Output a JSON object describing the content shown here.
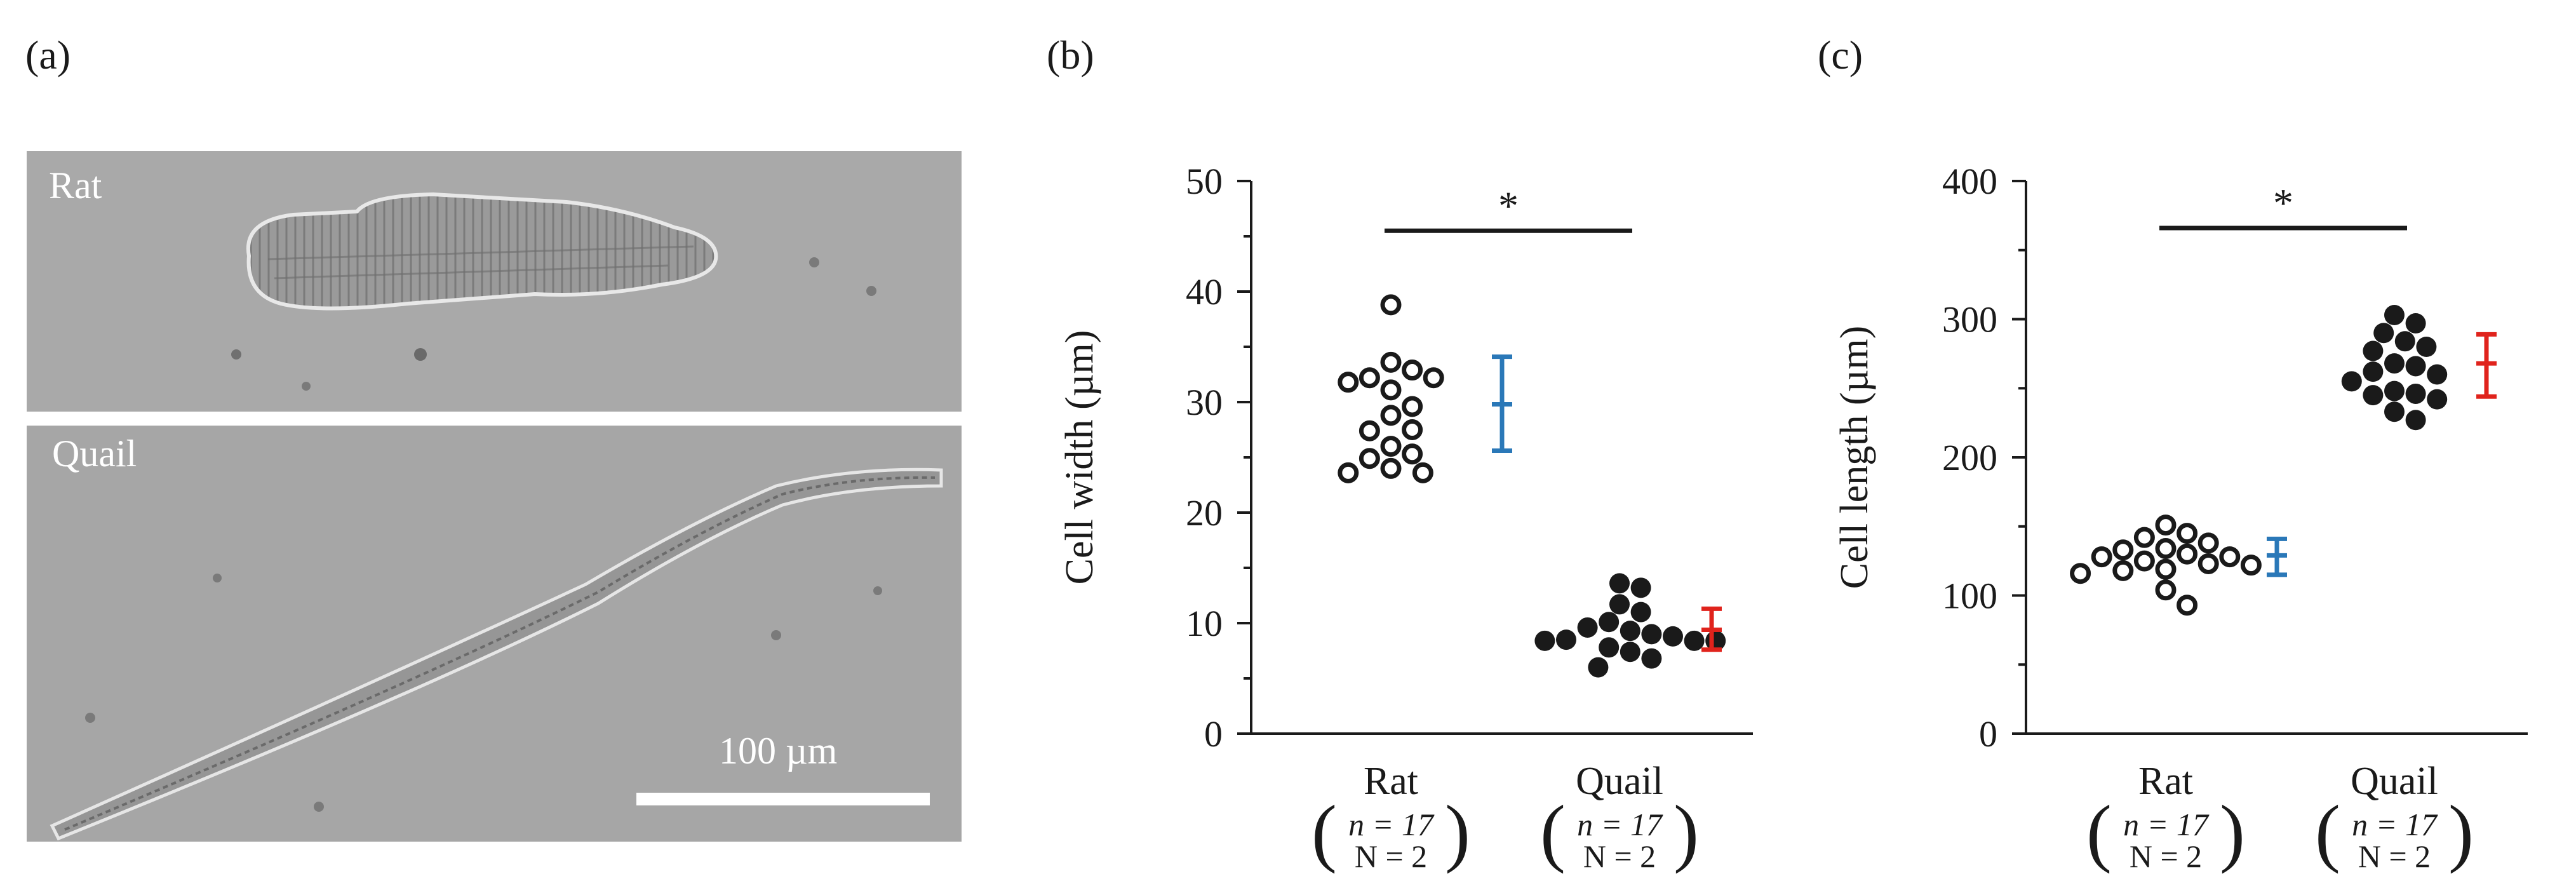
{
  "panels": {
    "a": {
      "label": "(a)",
      "top_image_label": "Rat",
      "bottom_image_label": "Quail",
      "scale_bar_label": "100 µm"
    },
    "b": {
      "label": "(b)"
    },
    "c": {
      "label": "(c)"
    }
  },
  "chart_data": [
    {
      "type": "scatter",
      "panel": "(b)",
      "title": "",
      "ylabel": "Cell width (µm)",
      "xlabel": "",
      "ylim": [
        0,
        50
      ],
      "yticks": [
        0,
        10,
        20,
        30,
        40,
        50
      ],
      "categories": [
        {
          "name": "Rat",
          "n_label": "n = 17",
          "N_label": "N = 2"
        },
        {
          "name": "Quail",
          "n_label": "n = 17",
          "N_label": "N = 2"
        }
      ],
      "series": [
        {
          "name": "Rat",
          "marker": "open-circle",
          "values": [
            38.8,
            33.6,
            32.9,
            32.2,
            32.2,
            31.8,
            31.1,
            29.6,
            28.8,
            27.5,
            27.4,
            26.0,
            25.3,
            24.9,
            24.0,
            23.6,
            23.6
          ]
        },
        {
          "name": "Quail",
          "marker": "filled-circle",
          "values": [
            13.6,
            13.2,
            11.7,
            11.0,
            10.1,
            9.6,
            9.3,
            9.0,
            8.8,
            8.5,
            8.4,
            8.4,
            8.4,
            7.8,
            7.4,
            6.8,
            6.0
          ]
        }
      ],
      "error_bars": [
        {
          "category": "Rat",
          "mean": 29.8,
          "low": 25.6,
          "high": 34.1,
          "color": "#2a78b8"
        },
        {
          "category": "Quail",
          "mean": 9.4,
          "low": 7.6,
          "high": 11.3,
          "color": "#e0231c"
        }
      ],
      "significance": {
        "from": "Rat",
        "to": "Quail",
        "y": 45.5,
        "label": "*"
      }
    },
    {
      "type": "scatter",
      "panel": "(c)",
      "title": "",
      "ylabel": "Cell length (µm)",
      "xlabel": "",
      "ylim": [
        0,
        400
      ],
      "yticks": [
        0,
        100,
        200,
        300,
        400
      ],
      "categories": [
        {
          "name": "Rat",
          "n_label": "n = 17",
          "N_label": "N = 2"
        },
        {
          "name": "Quail",
          "n_label": "n = 17",
          "N_label": "N = 2"
        }
      ],
      "series": [
        {
          "name": "Rat",
          "marker": "open-circle",
          "values": [
            151,
            145,
            142,
            138,
            134,
            133,
            130,
            128,
            128,
            125,
            123,
            122,
            119,
            118,
            116,
            104,
            93
          ]
        },
        {
          "name": "Quail",
          "marker": "filled-circle",
          "values": [
            303,
            297,
            290,
            284,
            280,
            277,
            268,
            266,
            262,
            260,
            255,
            248,
            246,
            245,
            242,
            233,
            227
          ]
        }
      ],
      "error_bars": [
        {
          "category": "Rat",
          "mean": 129,
          "low": 115,
          "high": 141,
          "color": "#2a78b8"
        },
        {
          "category": "Quail",
          "mean": 268,
          "low": 244,
          "high": 289,
          "color": "#e0231c"
        }
      ],
      "significance": {
        "from": "Rat",
        "to": "Quail",
        "y": 366,
        "label": "*"
      }
    }
  ],
  "colors": {
    "rat_error": "#2a78b8",
    "quail_error": "#e0231c",
    "micrograph_bg": "#a8a8a8"
  }
}
